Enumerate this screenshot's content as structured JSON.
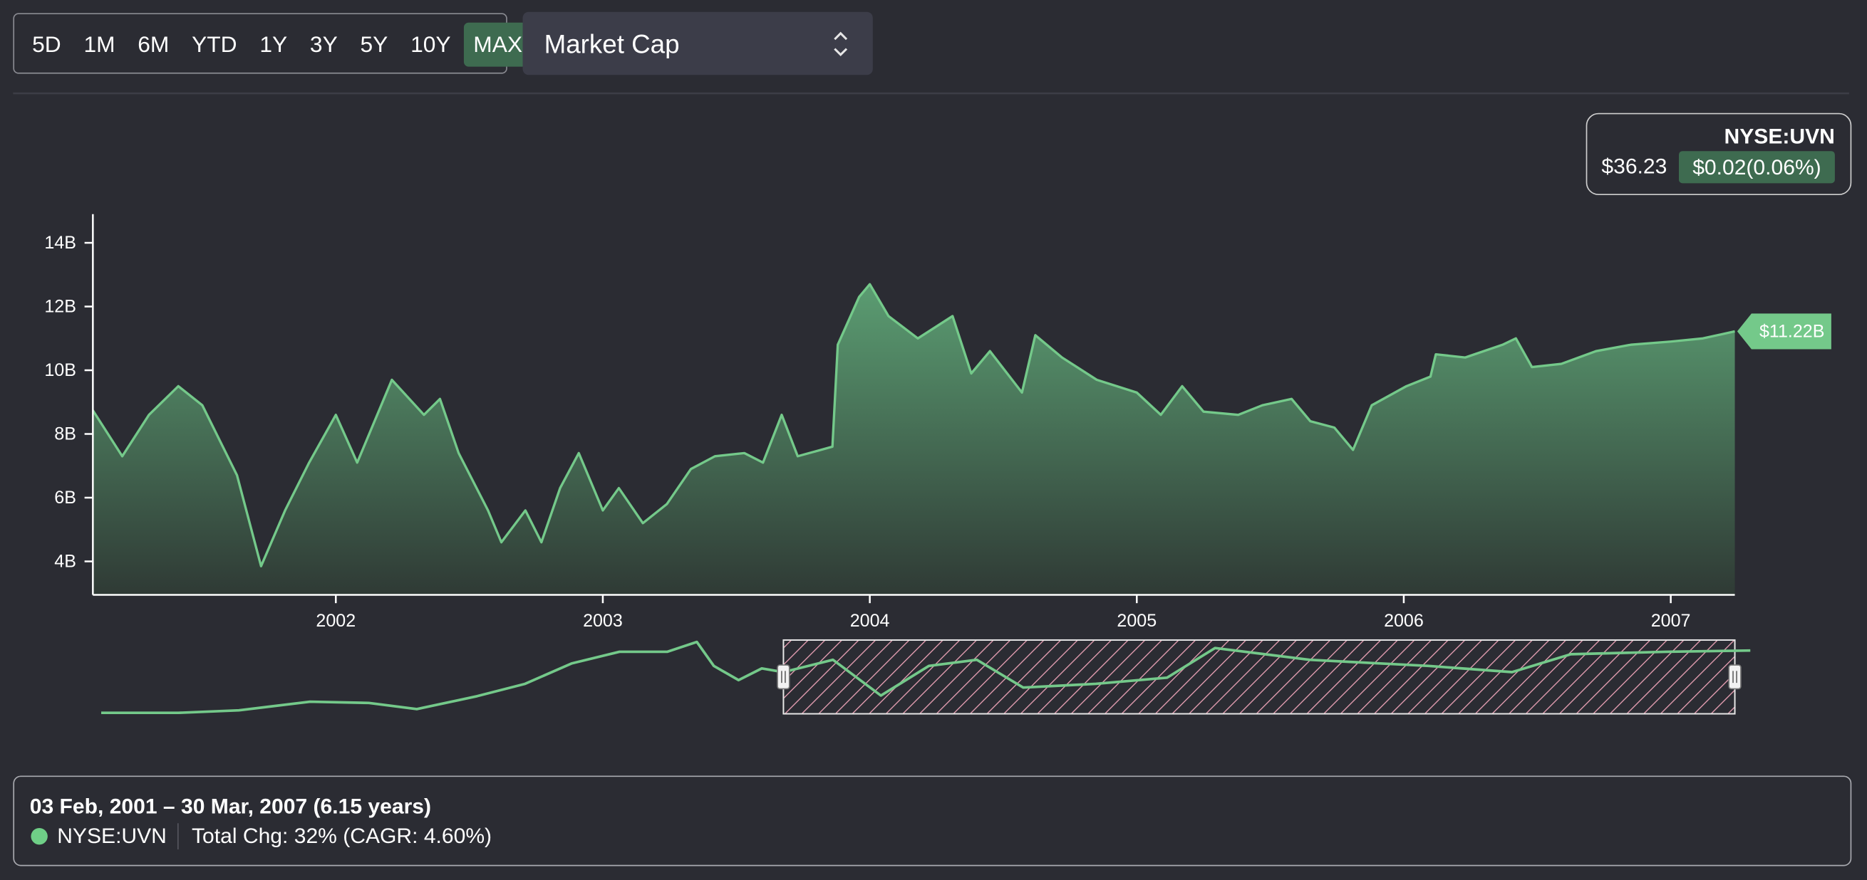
{
  "range_buttons": [
    "5D",
    "1M",
    "6M",
    "YTD",
    "1Y",
    "3Y",
    "5Y",
    "10Y",
    "MAX"
  ],
  "selected_range": "MAX",
  "metric_select": "Market Cap",
  "ticker_card": {
    "ticker": "NYSE:UVN",
    "price": "$36.23",
    "change": "$0.02(0.06%)"
  },
  "chart_data": [
    {
      "type": "area",
      "color": "#74c98a",
      "end_label": "$11.22B",
      "x": [
        2001.09,
        2001.2,
        2001.3,
        2001.41,
        2001.5,
        2001.63,
        2001.72,
        2001.81,
        2001.9,
        2002.0,
        2002.08,
        2002.21,
        2002.33,
        2002.39,
        2002.46,
        2002.57,
        2002.62,
        2002.71,
        2002.77,
        2002.84,
        2002.91,
        2003.0,
        2003.06,
        2003.15,
        2003.24,
        2003.33,
        2003.42,
        2003.53,
        2003.6,
        2003.67,
        2003.73,
        2003.86,
        2003.88,
        2003.96,
        2004.0,
        2004.07,
        2004.18,
        2004.31,
        2004.38,
        2004.45,
        2004.57,
        2004.62,
        2004.72,
        2004.85,
        2005.0,
        2005.09,
        2005.17,
        2005.25,
        2005.38,
        2005.47,
        2005.58,
        2005.65,
        2005.74,
        2005.81,
        2005.88,
        2006.01,
        2006.1,
        2006.12,
        2006.23,
        2006.37,
        2006.42,
        2006.48,
        2006.59,
        2006.72,
        2006.85,
        2007.0,
        2007.12,
        2007.24
      ],
      "values": [
        8.74,
        7.3,
        8.6,
        9.5,
        8.9,
        6.7,
        3.85,
        5.6,
        7.1,
        8.6,
        7.1,
        9.7,
        8.6,
        9.1,
        7.4,
        5.6,
        4.6,
        5.6,
        4.6,
        6.3,
        7.4,
        5.6,
        6.3,
        5.2,
        5.8,
        6.9,
        7.3,
        7.4,
        7.1,
        8.6,
        7.3,
        7.6,
        10.8,
        12.3,
        12.7,
        11.7,
        11.0,
        11.7,
        9.9,
        10.6,
        9.3,
        11.1,
        10.4,
        9.7,
        9.3,
        8.6,
        9.5,
        8.7,
        8.6,
        8.9,
        9.1,
        8.4,
        8.2,
        7.5,
        8.9,
        9.5,
        9.8,
        10.5,
        10.4,
        10.8,
        11.0,
        10.1,
        10.2,
        10.6,
        10.8,
        10.9,
        11.0,
        11.22
      ],
      "xlim": [
        2001.09,
        2007.24
      ],
      "xticks": [
        2002,
        2003,
        2004,
        2005,
        2006,
        2007
      ],
      "ylim": [
        2.95,
        14.9
      ],
      "yticks": [
        {
          "value": 4,
          "label": "4B"
        },
        {
          "value": 6,
          "label": "6B"
        },
        {
          "value": 8,
          "label": "8B"
        },
        {
          "value": 10,
          "label": "10B"
        },
        {
          "value": 12,
          "label": "12B"
        },
        {
          "value": 14,
          "label": "14B"
        }
      ]
    },
    {
      "type": "line",
      "color": "#74c98a",
      "x": [
        1996.68,
        1997.18,
        1997.57,
        1998.03,
        1998.41,
        1998.72,
        1999.11,
        1999.42,
        1999.72,
        2000.03,
        2000.34,
        2000.53,
        2000.64,
        2000.8,
        2000.95,
        2001.09,
        2001.41,
        2001.72,
        2002.03,
        2002.34,
        2002.64,
        2003.11,
        2003.57,
        2003.88,
        2004.49,
        2005.26,
        2005.8,
        2006.18,
        2006.8,
        2007.34
      ],
      "values": [
        1.1,
        1.1,
        1.5,
        2.9,
        2.7,
        1.7,
        3.8,
        5.8,
        9.1,
        11.0,
        11.0,
        12.6,
        8.7,
        6.4,
        8.3,
        7.7,
        9.7,
        3.9,
        8.7,
        9.7,
        5.2,
        5.8,
        6.8,
        11.6,
        9.7,
        8.7,
        7.7,
        10.6,
        11.0,
        11.2
      ],
      "xlim": [
        1996.68,
        2007.34
      ],
      "ylim": [
        0.94,
        12.9
      ]
    }
  ],
  "summary": {
    "range": "03 Feb, 2001 – 30 Mar, 2007 (6.15 years)",
    "ticker": "NYSE:UVN",
    "color": "#6fcf87",
    "change": "Total Chg: 32% (CAGR: 4.60%)"
  }
}
